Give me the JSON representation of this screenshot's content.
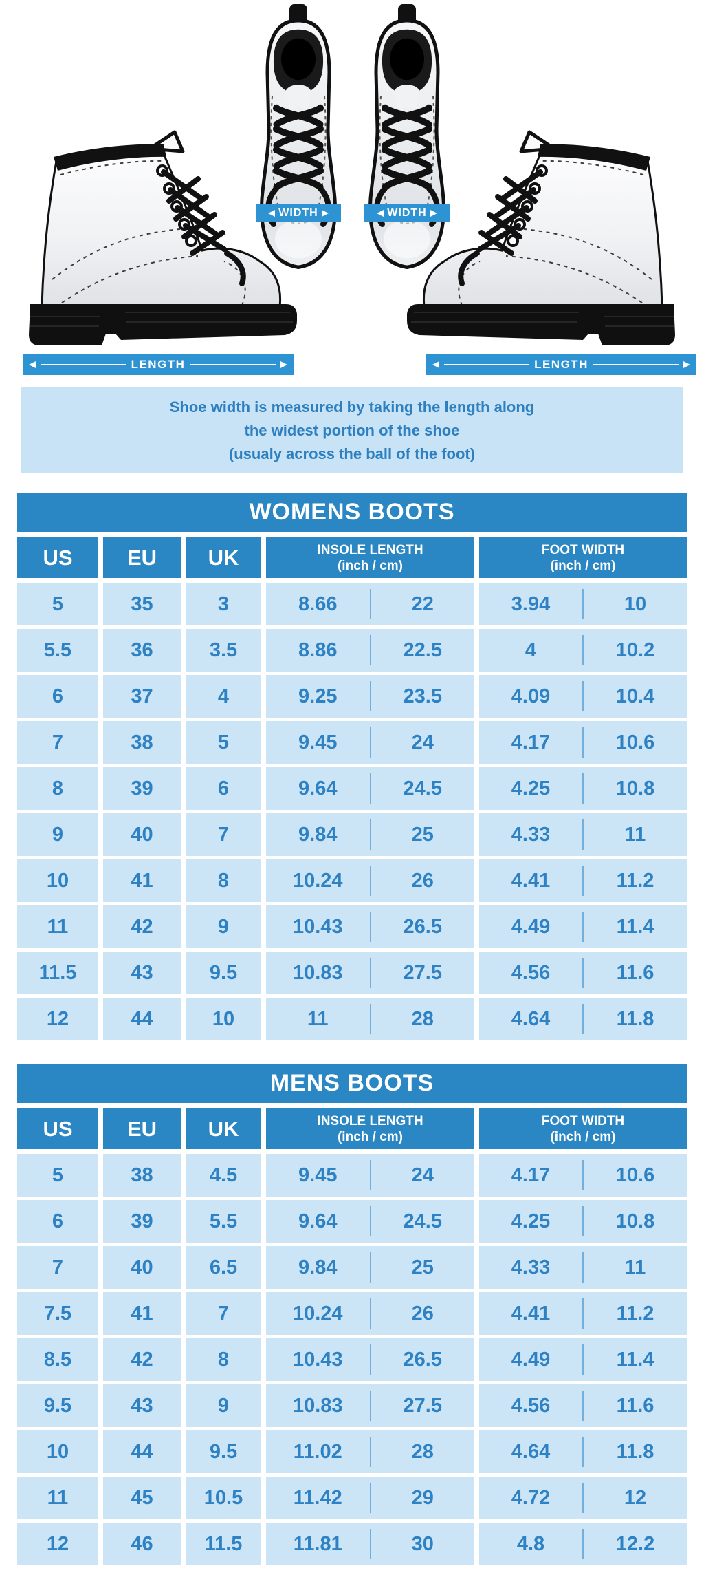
{
  "diagram": {
    "width_label": "WIDTH",
    "length_label": "LENGTH"
  },
  "note": {
    "line1": "Shoe width is measured by taking the length along",
    "line2": "the widest portion of the shoe",
    "line3": "(usualy across the ball of the foot)"
  },
  "colors": {
    "table_blue": "#2b87c4",
    "measure_bar_blue": "#2e93d2",
    "row_light_blue": "#cbe5f7",
    "note_bg": "#c7e3f5",
    "data_text_blue": "#2e82c3",
    "white": "#ffffff",
    "boot_black": "#111111"
  },
  "womens_table": {
    "title": "WOMENS BOOTS",
    "headers": {
      "us": "US",
      "eu": "EU",
      "uk": "UK",
      "insole_length": "INSOLE LENGTH",
      "insole_unit": "(inch / cm)",
      "foot_width": "FOOT WIDTH",
      "foot_unit": "(inch / cm)"
    },
    "rows": [
      [
        "5",
        "35",
        "3",
        "8.66",
        "22",
        "3.94",
        "10"
      ],
      [
        "5.5",
        "36",
        "3.5",
        "8.86",
        "22.5",
        "4",
        "10.2"
      ],
      [
        "6",
        "37",
        "4",
        "9.25",
        "23.5",
        "4.09",
        "10.4"
      ],
      [
        "7",
        "38",
        "5",
        "9.45",
        "24",
        "4.17",
        "10.6"
      ],
      [
        "8",
        "39",
        "6",
        "9.64",
        "24.5",
        "4.25",
        "10.8"
      ],
      [
        "9",
        "40",
        "7",
        "9.84",
        "25",
        "4.33",
        "11"
      ],
      [
        "10",
        "41",
        "8",
        "10.24",
        "26",
        "4.41",
        "11.2"
      ],
      [
        "11",
        "42",
        "9",
        "10.43",
        "26.5",
        "4.49",
        "11.4"
      ],
      [
        "11.5",
        "43",
        "9.5",
        "10.83",
        "27.5",
        "4.56",
        "11.6"
      ],
      [
        "12",
        "44",
        "10",
        "11",
        "28",
        "4.64",
        "11.8"
      ]
    ]
  },
  "mens_table": {
    "title": "MENS BOOTS",
    "headers": {
      "us": "US",
      "eu": "EU",
      "uk": "UK",
      "insole_length": "INSOLE LENGTH",
      "insole_unit": "(inch / cm)",
      "foot_width": "FOOT WIDTH",
      "foot_unit": "(inch / cm)"
    },
    "rows": [
      [
        "5",
        "38",
        "4.5",
        "9.45",
        "24",
        "4.17",
        "10.6"
      ],
      [
        "6",
        "39",
        "5.5",
        "9.64",
        "24.5",
        "4.25",
        "10.8"
      ],
      [
        "7",
        "40",
        "6.5",
        "9.84",
        "25",
        "4.33",
        "11"
      ],
      [
        "7.5",
        "41",
        "7",
        "10.24",
        "26",
        "4.41",
        "11.2"
      ],
      [
        "8.5",
        "42",
        "8",
        "10.43",
        "26.5",
        "4.49",
        "11.4"
      ],
      [
        "9.5",
        "43",
        "9",
        "10.83",
        "27.5",
        "4.56",
        "11.6"
      ],
      [
        "10",
        "44",
        "9.5",
        "11.02",
        "28",
        "4.64",
        "11.8"
      ],
      [
        "11",
        "45",
        "10.5",
        "11.42",
        "29",
        "4.72",
        "12"
      ],
      [
        "12",
        "46",
        "11.5",
        "11.81",
        "30",
        "4.8",
        "12.2"
      ]
    ]
  },
  "chart_data": [
    {
      "type": "table",
      "title": "WOMENS BOOTS",
      "columns": [
        "US",
        "EU",
        "UK",
        "INSOLE LENGTH (inch)",
        "INSOLE LENGTH (cm)",
        "FOOT WIDTH (inch)",
        "FOOT WIDTH (cm)"
      ],
      "rows": [
        [
          5,
          35,
          3,
          8.66,
          22,
          3.94,
          10
        ],
        [
          5.5,
          36,
          3.5,
          8.86,
          22.5,
          4,
          10.2
        ],
        [
          6,
          37,
          4,
          9.25,
          23.5,
          4.09,
          10.4
        ],
        [
          7,
          38,
          5,
          9.45,
          24,
          4.17,
          10.6
        ],
        [
          8,
          39,
          6,
          9.64,
          24.5,
          4.25,
          10.8
        ],
        [
          9,
          40,
          7,
          9.84,
          25,
          4.33,
          11
        ],
        [
          10,
          41,
          8,
          10.24,
          26,
          4.41,
          11.2
        ],
        [
          11,
          42,
          9,
          10.43,
          26.5,
          4.49,
          11.4
        ],
        [
          11.5,
          43,
          9.5,
          10.83,
          27.5,
          4.56,
          11.6
        ],
        [
          12,
          44,
          10,
          11,
          28,
          4.64,
          11.8
        ]
      ]
    },
    {
      "type": "table",
      "title": "MENS BOOTS",
      "columns": [
        "US",
        "EU",
        "UK",
        "INSOLE LENGTH (inch)",
        "INSOLE LENGTH (cm)",
        "FOOT WIDTH (inch)",
        "FOOT WIDTH (cm)"
      ],
      "rows": [
        [
          5,
          38,
          4.5,
          9.45,
          24,
          4.17,
          10.6
        ],
        [
          6,
          39,
          5.5,
          9.64,
          24.5,
          4.25,
          10.8
        ],
        [
          7,
          40,
          6.5,
          9.84,
          25,
          4.33,
          11
        ],
        [
          7.5,
          41,
          7,
          10.24,
          26,
          4.41,
          11.2
        ],
        [
          8.5,
          42,
          8,
          10.43,
          26.5,
          4.49,
          11.4
        ],
        [
          9.5,
          43,
          9,
          10.83,
          27.5,
          4.56,
          11.6
        ],
        [
          10,
          44,
          9.5,
          11.02,
          28,
          4.64,
          11.8
        ],
        [
          11,
          45,
          10.5,
          11.42,
          29,
          4.72,
          12
        ],
        [
          12,
          46,
          11.5,
          11.81,
          30,
          4.8,
          12.2
        ]
      ]
    }
  ]
}
